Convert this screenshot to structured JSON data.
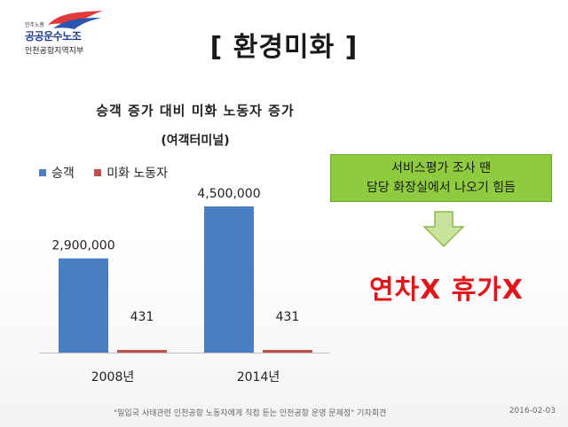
{
  "logo": {
    "small": "민주노총",
    "name": "공공운수노조",
    "branch": "인천공항지역지부"
  },
  "page_title": "[ 환경미화 ]",
  "callout": {
    "line1": "서비스평가 조사 땐",
    "line2": "담당 화장실에서 나오기 힘듬"
  },
  "big_text": "연차X 휴가X",
  "footer": {
    "source": "\"밀입국 사태관련 인천공항 노동자에게 직접 듣는 인천공항 운영 문제점\" 기자회견",
    "date": "2016-02-03"
  },
  "colors": {
    "passengers": "#4a7ec2",
    "cleaners": "#c0504d",
    "callout": "#8ecb3f",
    "emphasis": "#e0161b"
  },
  "chart_data": {
    "type": "bar",
    "title": "승객 증가 대비 미화 노동자 증가",
    "subtitle": "(여객터미널)",
    "categories": [
      "2008년",
      "2014년"
    ],
    "series": [
      {
        "name": "승객",
        "values": [
          2900000,
          4500000
        ],
        "labels": [
          "2,900,000",
          "4,500,000"
        ]
      },
      {
        "name": "미화 노동자",
        "values": [
          431,
          431
        ],
        "labels": [
          "431",
          "431"
        ]
      }
    ],
    "ylim": [
      0,
      5400000
    ],
    "legend": "top-left",
    "grid": false
  }
}
